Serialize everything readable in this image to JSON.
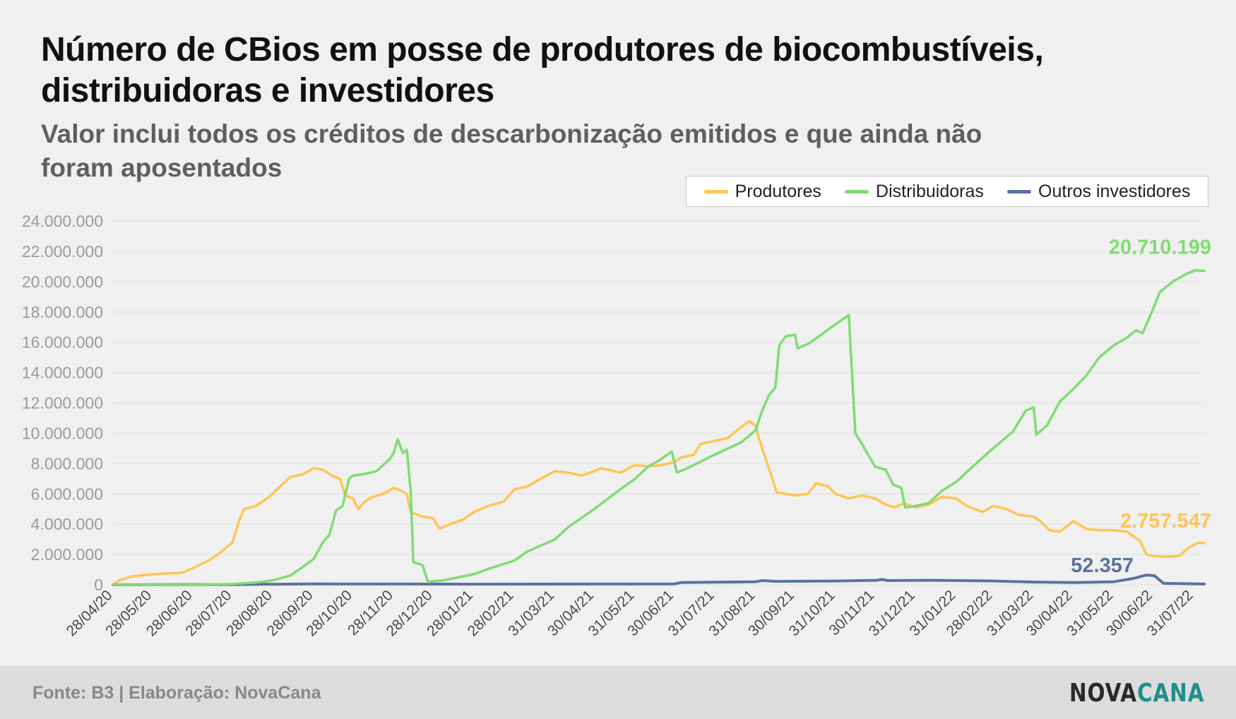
{
  "title": "Número de CBios em posse de produtores de biocombustíveis, distribuidoras e investidores",
  "subtitle": "Valor inclui todos os créditos de descarbonização emitidos e que ainda não foram aposentados",
  "legend": {
    "items": [
      "Produtores",
      "Distribuidoras",
      "Outros investidores"
    ]
  },
  "colors": {
    "produtores": "#ffc552",
    "distribuidoras": "#7fdc73",
    "outros": "#5a72a2",
    "grid": "#e2e2e2"
  },
  "footer": {
    "source": "Fonte: B3 | Elaboração: NovaCana",
    "logo_part1": "NOVA",
    "logo_part2": "CANA"
  },
  "chart_data": {
    "type": "line",
    "ylim": [
      0,
      24000000
    ],
    "yticks": [
      0,
      2000000,
      4000000,
      6000000,
      8000000,
      10000000,
      12000000,
      14000000,
      16000000,
      18000000,
      20000000,
      22000000,
      24000000
    ],
    "ytick_labels": [
      "0",
      "2.000.000",
      "4.000.000",
      "6.000.000",
      "8.000.000",
      "10.000.000",
      "12.000.000",
      "14.000.000",
      "16.000.000",
      "18.000.000",
      "20.000.000",
      "22.000.000",
      "24.000.000"
    ],
    "x_start": "2020-04-28",
    "x_end": "2022-08-08",
    "xticks": [
      "2020-04-28",
      "2020-05-28",
      "2020-06-28",
      "2020-07-28",
      "2020-08-28",
      "2020-09-28",
      "2020-10-28",
      "2020-11-28",
      "2020-12-28",
      "2021-01-28",
      "2021-02-28",
      "2021-03-31",
      "2021-04-30",
      "2021-05-31",
      "2021-06-30",
      "2021-07-31",
      "2021-08-31",
      "2021-09-30",
      "2021-10-31",
      "2021-11-30",
      "2021-12-31",
      "2022-01-31",
      "2022-02-28",
      "2022-03-31",
      "2022-04-30",
      "2022-05-31",
      "2022-06-30",
      "2022-07-31"
    ],
    "xtick_labels": [
      "28/04/20",
      "28/05/20",
      "28/06/20",
      "28/07/20",
      "28/08/20",
      "28/09/20",
      "28/10/20",
      "28/11/20",
      "28/12/20",
      "28/01/21",
      "28/02/21",
      "31/03/21",
      "30/04/21",
      "31/05/21",
      "30/06/21",
      "31/07/21",
      "31/08/21",
      "30/09/21",
      "31/10/21",
      "30/11/21",
      "31/12/21",
      "31/01/22",
      "28/02/22",
      "31/03/22",
      "30/04/22",
      "31/05/22",
      "30/06/22",
      "31/07/22"
    ],
    "series": [
      {
        "name": "Produtores",
        "end_label": "2.757.547",
        "points": [
          [
            "2020-04-28",
            0
          ],
          [
            "2020-05-03",
            300000
          ],
          [
            "2020-05-12",
            550000
          ],
          [
            "2020-05-28",
            700000
          ],
          [
            "2020-06-20",
            800000
          ],
          [
            "2020-06-28",
            1100000
          ],
          [
            "2020-07-10",
            1600000
          ],
          [
            "2020-07-20",
            2200000
          ],
          [
            "2020-07-28",
            2800000
          ],
          [
            "2020-08-02",
            4200000
          ],
          [
            "2020-08-06",
            5000000
          ],
          [
            "2020-08-15",
            5200000
          ],
          [
            "2020-08-25",
            5800000
          ],
          [
            "2020-09-05",
            6700000
          ],
          [
            "2020-09-10",
            7100000
          ],
          [
            "2020-09-20",
            7300000
          ],
          [
            "2020-09-28",
            7700000
          ],
          [
            "2020-10-05",
            7600000
          ],
          [
            "2020-10-12",
            7200000
          ],
          [
            "2020-10-18",
            7000000
          ],
          [
            "2020-10-22",
            5900000
          ],
          [
            "2020-10-28",
            5700000
          ],
          [
            "2020-11-01",
            5000000
          ],
          [
            "2020-11-06",
            5500000
          ],
          [
            "2020-11-12",
            5800000
          ],
          [
            "2020-11-20",
            6000000
          ],
          [
            "2020-11-28",
            6400000
          ],
          [
            "2020-12-04",
            6200000
          ],
          [
            "2020-12-08",
            6000000
          ],
          [
            "2020-12-11",
            4800000
          ],
          [
            "2020-12-20",
            4500000
          ],
          [
            "2020-12-28",
            4400000
          ],
          [
            "2021-01-02",
            3700000
          ],
          [
            "2021-01-10",
            4000000
          ],
          [
            "2021-01-20",
            4300000
          ],
          [
            "2021-01-28",
            4800000
          ],
          [
            "2021-02-08",
            5200000
          ],
          [
            "2021-02-20",
            5500000
          ],
          [
            "2021-02-28",
            6300000
          ],
          [
            "2021-03-10",
            6500000
          ],
          [
            "2021-03-20",
            7000000
          ],
          [
            "2021-03-31",
            7500000
          ],
          [
            "2021-04-10",
            7400000
          ],
          [
            "2021-04-20",
            7200000
          ],
          [
            "2021-04-30",
            7500000
          ],
          [
            "2021-05-05",
            7700000
          ],
          [
            "2021-05-15",
            7500000
          ],
          [
            "2021-05-20",
            7400000
          ],
          [
            "2021-05-31",
            7900000
          ],
          [
            "2021-06-10",
            7800000
          ],
          [
            "2021-06-20",
            7900000
          ],
          [
            "2021-06-30",
            8100000
          ],
          [
            "2021-07-05",
            8400000
          ],
          [
            "2021-07-15",
            8600000
          ],
          [
            "2021-07-20",
            9300000
          ],
          [
            "2021-07-31",
            9500000
          ],
          [
            "2021-08-10",
            9700000
          ],
          [
            "2021-08-20",
            10400000
          ],
          [
            "2021-08-26",
            10800000
          ],
          [
            "2021-08-31",
            10500000
          ],
          [
            "2021-09-02",
            9800000
          ],
          [
            "2021-09-08",
            8200000
          ],
          [
            "2021-09-12",
            7200000
          ],
          [
            "2021-09-16",
            6100000
          ],
          [
            "2021-09-30",
            5900000
          ],
          [
            "2021-10-10",
            6000000
          ],
          [
            "2021-10-16",
            6700000
          ],
          [
            "2021-10-25",
            6500000
          ],
          [
            "2021-10-31",
            6000000
          ],
          [
            "2021-11-10",
            5700000
          ],
          [
            "2021-11-20",
            5900000
          ],
          [
            "2021-11-30",
            5700000
          ],
          [
            "2021-12-08",
            5300000
          ],
          [
            "2021-12-15",
            5100000
          ],
          [
            "2021-12-22",
            5400000
          ],
          [
            "2021-12-31",
            5100000
          ],
          [
            "2022-01-10",
            5300000
          ],
          [
            "2022-01-20",
            5800000
          ],
          [
            "2022-01-31",
            5700000
          ],
          [
            "2022-02-08",
            5200000
          ],
          [
            "2022-02-20",
            4800000
          ],
          [
            "2022-02-28",
            5200000
          ],
          [
            "2022-03-10",
            5000000
          ],
          [
            "2022-03-20",
            4600000
          ],
          [
            "2022-03-31",
            4500000
          ],
          [
            "2022-04-05",
            4200000
          ],
          [
            "2022-04-12",
            3600000
          ],
          [
            "2022-04-20",
            3500000
          ],
          [
            "2022-04-30",
            4200000
          ],
          [
            "2022-05-10",
            3700000
          ],
          [
            "2022-05-20",
            3600000
          ],
          [
            "2022-05-31",
            3600000
          ],
          [
            "2022-06-10",
            3500000
          ],
          [
            "2022-06-20",
            2900000
          ],
          [
            "2022-06-25",
            2000000
          ],
          [
            "2022-06-30",
            1900000
          ],
          [
            "2022-07-10",
            1850000
          ],
          [
            "2022-07-20",
            1900000
          ],
          [
            "2022-07-28",
            2500000
          ],
          [
            "2022-08-03",
            2750000
          ],
          [
            "2022-08-08",
            2757547
          ]
        ]
      },
      {
        "name": "Distribuidoras",
        "end_label": "20.710.199",
        "points": [
          [
            "2020-04-28",
            0
          ],
          [
            "2020-06-28",
            0
          ],
          [
            "2020-07-28",
            50000
          ],
          [
            "2020-08-15",
            150000
          ],
          [
            "2020-08-28",
            300000
          ],
          [
            "2020-09-10",
            600000
          ],
          [
            "2020-09-20",
            1200000
          ],
          [
            "2020-09-28",
            1700000
          ],
          [
            "2020-10-05",
            2800000
          ],
          [
            "2020-10-10",
            3300000
          ],
          [
            "2020-10-15",
            4900000
          ],
          [
            "2020-10-20",
            5200000
          ],
          [
            "2020-10-25",
            7000000
          ],
          [
            "2020-10-28",
            7200000
          ],
          [
            "2020-11-05",
            7300000
          ],
          [
            "2020-11-15",
            7500000
          ],
          [
            "2020-11-25",
            8300000
          ],
          [
            "2020-11-28",
            8700000
          ],
          [
            "2020-12-01",
            9600000
          ],
          [
            "2020-12-05",
            8700000
          ],
          [
            "2020-12-08",
            8900000
          ],
          [
            "2020-12-11",
            6200000
          ],
          [
            "2020-12-13",
            1500000
          ],
          [
            "2020-12-20",
            1300000
          ],
          [
            "2020-12-24",
            200000
          ],
          [
            "2021-01-05",
            300000
          ],
          [
            "2021-01-28",
            700000
          ],
          [
            "2021-02-10",
            1100000
          ],
          [
            "2021-02-28",
            1600000
          ],
          [
            "2021-03-10",
            2200000
          ],
          [
            "2021-03-31",
            3000000
          ],
          [
            "2021-04-10",
            3800000
          ],
          [
            "2021-04-30",
            5000000
          ],
          [
            "2021-05-15",
            6000000
          ],
          [
            "2021-05-31",
            7000000
          ],
          [
            "2021-06-10",
            7800000
          ],
          [
            "2021-06-20",
            8300000
          ],
          [
            "2021-06-28",
            8800000
          ],
          [
            "2021-07-02",
            7400000
          ],
          [
            "2021-07-10",
            7700000
          ],
          [
            "2021-07-31",
            8600000
          ],
          [
            "2021-08-10",
            9000000
          ],
          [
            "2021-08-20",
            9400000
          ],
          [
            "2021-08-31",
            10200000
          ],
          [
            "2021-09-05",
            11500000
          ],
          [
            "2021-09-10",
            12500000
          ],
          [
            "2021-09-15",
            13000000
          ],
          [
            "2021-09-18",
            15800000
          ],
          [
            "2021-09-23",
            16400000
          ],
          [
            "2021-09-30",
            16500000
          ],
          [
            "2021-10-02",
            15600000
          ],
          [
            "2021-10-10",
            15900000
          ],
          [
            "2021-10-20",
            16500000
          ],
          [
            "2021-10-31",
            17200000
          ],
          [
            "2021-11-10",
            17800000
          ],
          [
            "2021-11-15",
            10000000
          ],
          [
            "2021-11-20",
            9300000
          ],
          [
            "2021-11-30",
            7800000
          ],
          [
            "2021-12-08",
            7600000
          ],
          [
            "2021-12-14",
            6600000
          ],
          [
            "2021-12-20",
            6400000
          ],
          [
            "2021-12-23",
            5100000
          ],
          [
            "2021-12-31",
            5200000
          ],
          [
            "2022-01-10",
            5400000
          ],
          [
            "2022-01-20",
            6200000
          ],
          [
            "2022-01-31",
            6800000
          ],
          [
            "2022-02-15",
            8000000
          ],
          [
            "2022-02-28",
            9000000
          ],
          [
            "2022-03-15",
            10100000
          ],
          [
            "2022-03-25",
            11500000
          ],
          [
            "2022-03-31",
            11700000
          ],
          [
            "2022-04-02",
            9900000
          ],
          [
            "2022-04-10",
            10500000
          ],
          [
            "2022-04-20",
            12100000
          ],
          [
            "2022-04-30",
            12900000
          ],
          [
            "2022-05-10",
            13800000
          ],
          [
            "2022-05-20",
            15000000
          ],
          [
            "2022-05-31",
            15800000
          ],
          [
            "2022-06-10",
            16300000
          ],
          [
            "2022-06-17",
            16800000
          ],
          [
            "2022-06-22",
            16600000
          ],
          [
            "2022-06-30",
            18200000
          ],
          [
            "2022-07-05",
            19300000
          ],
          [
            "2022-07-15",
            20000000
          ],
          [
            "2022-07-25",
            20500000
          ],
          [
            "2022-08-01",
            20750000
          ],
          [
            "2022-08-08",
            20710199
          ]
        ]
      },
      {
        "name": "Outros investidores",
        "end_label": "52.357",
        "points": [
          [
            "2020-04-28",
            0
          ],
          [
            "2020-07-28",
            20000
          ],
          [
            "2020-09-28",
            60000
          ],
          [
            "2020-11-28",
            50000
          ],
          [
            "2021-01-28",
            40000
          ],
          [
            "2021-04-30",
            50000
          ],
          [
            "2021-06-30",
            60000
          ],
          [
            "2021-07-05",
            150000
          ],
          [
            "2021-08-31",
            200000
          ],
          [
            "2021-09-05",
            280000
          ],
          [
            "2021-09-15",
            230000
          ],
          [
            "2021-10-31",
            250000
          ],
          [
            "2021-12-01",
            300000
          ],
          [
            "2021-12-05",
            350000
          ],
          [
            "2021-12-10",
            280000
          ],
          [
            "2022-01-15",
            300000
          ],
          [
            "2022-02-28",
            250000
          ],
          [
            "2022-03-31",
            180000
          ],
          [
            "2022-04-30",
            150000
          ],
          [
            "2022-05-31",
            200000
          ],
          [
            "2022-06-15",
            420000
          ],
          [
            "2022-06-25",
            650000
          ],
          [
            "2022-07-01",
            600000
          ],
          [
            "2022-07-08",
            100000
          ],
          [
            "2022-08-08",
            52357
          ]
        ]
      }
    ]
  }
}
